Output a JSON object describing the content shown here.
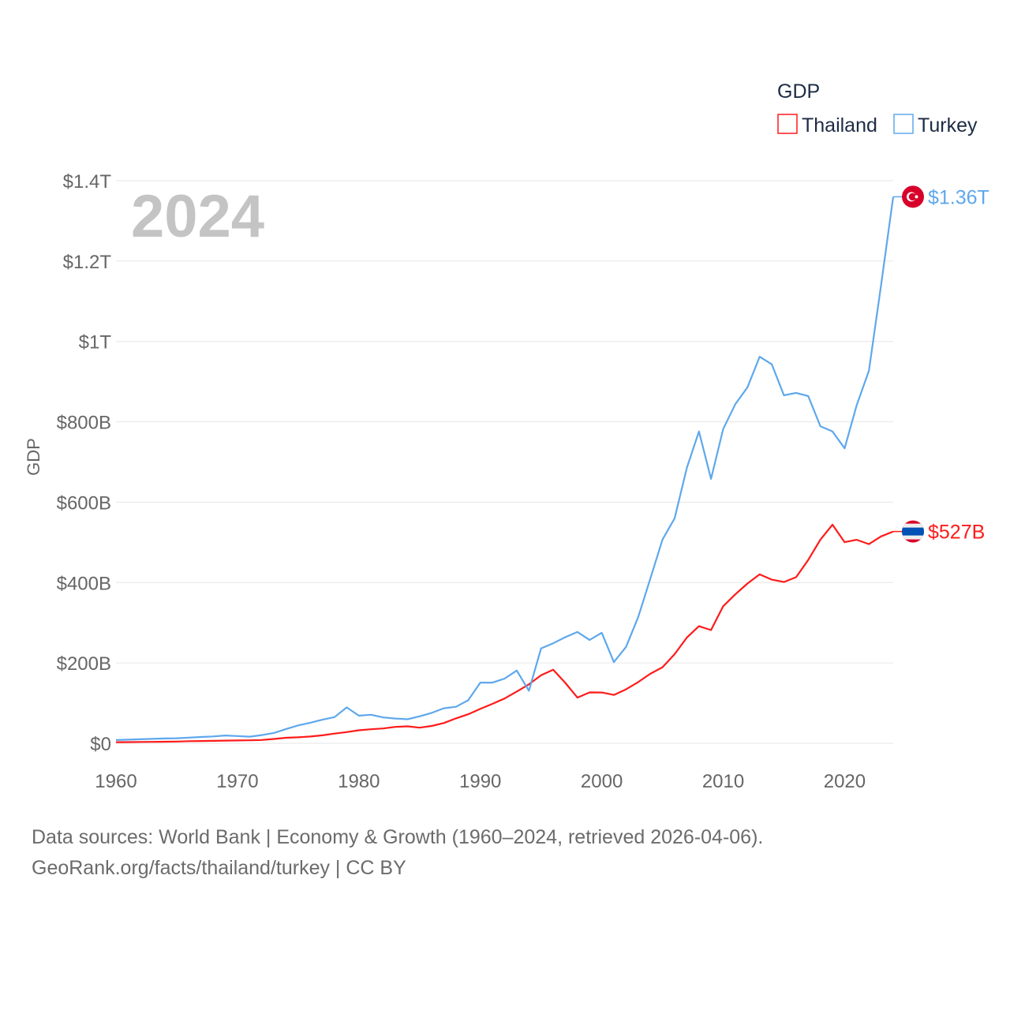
{
  "colors": {
    "thailand": "#ff1a1a",
    "turkey": "#5ea8ec",
    "grid": "#e6e6e6",
    "year_label": "#c4c4c4"
  },
  "chart_data": {
    "type": "line",
    "title": "",
    "year_label": "2024",
    "xlabel": "",
    "ylabel": "GDP",
    "xlim": [
      1960,
      2024
    ],
    "ylim": [
      0,
      1400
    ],
    "units": "billions USD",
    "grid": true,
    "x_ticks": [
      1960,
      1970,
      1980,
      1990,
      2000,
      2010,
      2020
    ],
    "x_tick_labels": [
      "1960",
      "1970",
      "1980",
      "1990",
      "2000",
      "2010",
      "2020"
    ],
    "y_ticks": [
      0,
      200,
      400,
      600,
      800,
      1000,
      1200,
      1400
    ],
    "y_tick_labels": [
      "$0",
      "$200B",
      "$400B",
      "$600B",
      "$800B",
      "$1T",
      "$1.2T",
      "$1.4T"
    ],
    "legend": {
      "title": "GDP",
      "position": "top-right",
      "entries": [
        "Thailand",
        "Turkey"
      ]
    },
    "series": [
      {
        "name": "Thailand",
        "key": "thailand",
        "end_label": "$527B",
        "flag": "thailand-flag",
        "values": [
          2.8,
          3.0,
          3.3,
          3.5,
          3.9,
          4.4,
          5.3,
          5.6,
          6.1,
          6.7,
          7.1,
          7.4,
          8.2,
          10.8,
          13.7,
          14.9,
          16.9,
          19.8,
          24.1,
          27.8,
          32.4,
          35.0,
          37.0,
          40.8,
          42.3,
          38.9,
          43.1,
          50.5,
          62.0,
          72.3,
          85.6,
          98.2,
          111.5,
          128.9,
          146.7,
          169.3,
          183.0,
          150.2,
          113.7,
          126.7,
          126.4,
          120.3,
          134.3,
          152.3,
          172.9,
          189.3,
          221.8,
          262.9,
          291.4,
          281.7,
          341.1,
          370.8,
          397.6,
          420.3,
          407.3,
          401.3,
          413.4,
          456.4,
          506.8,
          544.0,
          500.5,
          506.3,
          495.6,
          514.9,
          527.0
        ]
      },
      {
        "name": "Turkey",
        "key": "turkey",
        "end_label": "$1.36T",
        "flag": "turkey-flag",
        "values": [
          8.0,
          9.0,
          10.0,
          11.0,
          12.0,
          12.5,
          14.1,
          15.7,
          17.0,
          19.5,
          18.0,
          16.4,
          20.4,
          25.7,
          35.6,
          44.6,
          51.3,
          58.7,
          65.1,
          89.4,
          68.8,
          71.0,
          64.5,
          61.7,
          59.9,
          67.2,
          75.7,
          87.2,
          90.9,
          107.1,
          151.0,
          151.0,
          161.0,
          181.0,
          130.7,
          236.0,
          249.0,
          264.0,
          277.0,
          257.0,
          275.0,
          202.0,
          240.0,
          314.0,
          410.0,
          507.0,
          560.0,
          685.0,
          776.0,
          658.0,
          782.0,
          844.0,
          886.0,
          962.0,
          943.0,
          866.0,
          872.0,
          864.0,
          789.0,
          776.0,
          734.0,
          842.0,
          927.0,
          1140.0,
          1360.0
        ]
      }
    ]
  },
  "footer": {
    "line1": "Data sources: World Bank | Economy & Growth (1960–2024, retrieved 2026-04-06).",
    "line2": "GeoRank.org/facts/thailand/turkey | CC BY"
  }
}
